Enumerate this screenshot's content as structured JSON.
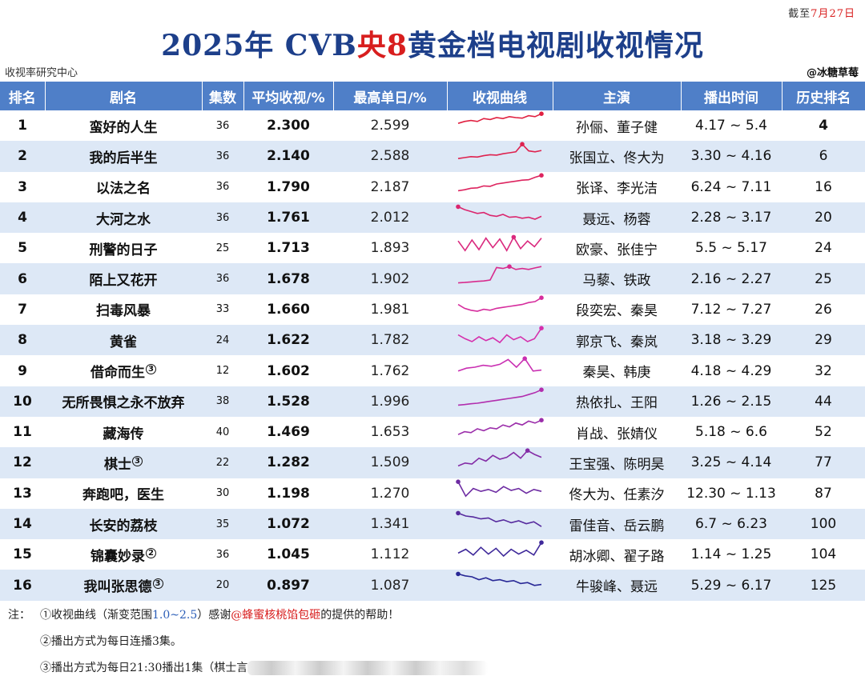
{
  "cutoff": {
    "prefix": "截至",
    "date": "7月27日"
  },
  "title": {
    "part1": "2025年 CVB",
    "part2": "央8",
    "part3": "黄金档电视剧收视情况"
  },
  "source": "收视率研究中心",
  "credit": "@冰糖草莓",
  "headers": [
    "排名",
    "剧名",
    "集数",
    "平均收视/%",
    "最高单日/%",
    "收视曲线",
    "主演",
    "播出时间",
    "历史排名"
  ],
  "rows": [
    {
      "rank": "1",
      "name": "蛮好的人生",
      "note": "",
      "episodes": "36",
      "avg": "2.300",
      "peak": "2.599",
      "cast": "孙俪、董子健",
      "period": "4.17 ~ 5.4",
      "hist": "4"
    },
    {
      "rank": "2",
      "name": "我的后半生",
      "note": "",
      "episodes": "36",
      "avg": "2.140",
      "peak": "2.588",
      "cast": "张国立、佟大为",
      "period": "3.30 ~ 4.16",
      "hist": "6"
    },
    {
      "rank": "3",
      "name": "以法之名",
      "note": "",
      "episodes": "36",
      "avg": "1.790",
      "peak": "2.187",
      "cast": "张译、李光洁",
      "period": "6.24 ~ 7.11",
      "hist": "16"
    },
    {
      "rank": "4",
      "name": "大河之水",
      "note": "",
      "episodes": "36",
      "avg": "1.761",
      "peak": "2.012",
      "cast": "聂远、杨蓉",
      "period": "2.28 ~ 3.17",
      "hist": "20"
    },
    {
      "rank": "5",
      "name": "刑警的日子",
      "note": "",
      "episodes": "25",
      "avg": "1.713",
      "peak": "1.893",
      "cast": "欧豪、张佳宁",
      "period": "5.5 ~ 5.17",
      "hist": "24"
    },
    {
      "rank": "6",
      "name": "陌上又花开",
      "note": "",
      "episodes": "36",
      "avg": "1.678",
      "peak": "1.902",
      "cast": "马藜、铁政",
      "period": "2.16 ~ 2.27",
      "hist": "25"
    },
    {
      "rank": "7",
      "name": "扫毒风暴",
      "note": "",
      "episodes": "33",
      "avg": "1.660",
      "peak": "1.981",
      "cast": "段奕宏、秦昊",
      "period": "7.12 ~ 7.27",
      "hist": "26"
    },
    {
      "rank": "8",
      "name": "黄雀",
      "note": "",
      "episodes": "24",
      "avg": "1.622",
      "peak": "1.782",
      "cast": "郭京飞、秦岚",
      "period": "3.18 ~ 3.29",
      "hist": "29"
    },
    {
      "rank": "9",
      "name": "借命而生",
      "note": "3",
      "episodes": "12",
      "avg": "1.602",
      "peak": "1.762",
      "cast": "秦昊、韩庚",
      "period": "4.18 ~ 4.29",
      "hist": "32"
    },
    {
      "rank": "10",
      "name": "无所畏惧之永不放弃",
      "note": "",
      "episodes": "38",
      "avg": "1.528",
      "peak": "1.996",
      "cast": "热依扎、王阳",
      "period": "1.26 ~ 2.15",
      "hist": "44"
    },
    {
      "rank": "11",
      "name": "藏海传",
      "note": "",
      "episodes": "40",
      "avg": "1.469",
      "peak": "1.653",
      "cast": "肖战、张婧仪",
      "period": "5.18 ~ 6.6",
      "hist": "52"
    },
    {
      "rank": "12",
      "name": "棋士",
      "note": "3",
      "episodes": "22",
      "avg": "1.282",
      "peak": "1.509",
      "cast": "王宝强、陈明昊",
      "period": "3.25 ~ 4.14",
      "hist": "77"
    },
    {
      "rank": "13",
      "name": "奔跑吧，医生",
      "note": "",
      "episodes": "30",
      "avg": "1.198",
      "peak": "1.270",
      "cast": "佟大为、任素汐",
      "period": "12.30 ~ 1.13",
      "hist": "87"
    },
    {
      "rank": "14",
      "name": "长安的荔枝",
      "note": "",
      "episodes": "35",
      "avg": "1.072",
      "peak": "1.341",
      "cast": "雷佳音、岳云鹏",
      "period": "6.7 ~ 6.23",
      "hist": "100"
    },
    {
      "rank": "15",
      "name": "锦囊妙录",
      "note": "2",
      "episodes": "36",
      "avg": "1.045",
      "peak": "1.112",
      "cast": "胡冰卿、翟子路",
      "period": "1.14 ~ 1.25",
      "hist": "104"
    },
    {
      "rank": "16",
      "name": "我叫张思德",
      "note": "3",
      "episodes": "20",
      "avg": "0.897",
      "peak": "1.087",
      "cast": "牛骏峰、聂远",
      "period": "5.29 ~ 6.17",
      "hist": "125"
    }
  ],
  "curves": [
    [
      0.45,
      0.55,
      0.6,
      0.55,
      0.7,
      0.65,
      0.75,
      0.7,
      0.8,
      0.75,
      0.72,
      0.85,
      0.8,
      0.95
    ],
    [
      0.2,
      0.25,
      0.3,
      0.28,
      0.35,
      0.4,
      0.38,
      0.45,
      0.5,
      0.55,
      0.95,
      0.6,
      0.55,
      0.62
    ],
    [
      0.15,
      0.2,
      0.28,
      0.3,
      0.4,
      0.38,
      0.5,
      0.55,
      0.6,
      0.65,
      0.7,
      0.72,
      0.85,
      0.95
    ],
    [
      0.9,
      0.75,
      0.65,
      0.55,
      0.6,
      0.45,
      0.4,
      0.5,
      0.35,
      0.38,
      0.3,
      0.35,
      0.25,
      0.4
    ],
    [
      0.7,
      0.2,
      0.75,
      0.25,
      0.85,
      0.35,
      0.8,
      0.2,
      0.9,
      0.3,
      0.7,
      0.4,
      0.85
    ],
    [
      0.1,
      0.12,
      0.15,
      0.18,
      0.2,
      0.25,
      0.9,
      0.85,
      0.95,
      0.8,
      0.85,
      0.8,
      0.88,
      0.95
    ],
    [
      0.6,
      0.4,
      0.3,
      0.25,
      0.35,
      0.3,
      0.4,
      0.45,
      0.5,
      0.55,
      0.6,
      0.7,
      0.75,
      0.95
    ],
    [
      0.6,
      0.4,
      0.25,
      0.5,
      0.3,
      0.45,
      0.2,
      0.6,
      0.35,
      0.5,
      0.25,
      0.4,
      0.95
    ],
    [
      0.3,
      0.45,
      0.5,
      0.6,
      0.55,
      0.65,
      0.9,
      0.5,
      0.95,
      0.3,
      0.35
    ],
    [
      0.15,
      0.18,
      0.22,
      0.25,
      0.3,
      0.35,
      0.4,
      0.45,
      0.5,
      0.55,
      0.6,
      0.7,
      0.8,
      0.95
    ],
    [
      0.2,
      0.35,
      0.3,
      0.5,
      0.4,
      0.55,
      0.5,
      0.7,
      0.6,
      0.8,
      0.7,
      0.9,
      0.8,
      0.95
    ],
    [
      0.15,
      0.3,
      0.25,
      0.55,
      0.4,
      0.7,
      0.5,
      0.6,
      0.85,
      0.55,
      0.95,
      0.75,
      0.6
    ],
    [
      0.95,
      0.2,
      0.6,
      0.45,
      0.55,
      0.4,
      0.7,
      0.5,
      0.6,
      0.35,
      0.55,
      0.45
    ],
    [
      0.9,
      0.75,
      0.7,
      0.6,
      0.65,
      0.45,
      0.55,
      0.4,
      0.5,
      0.35,
      0.45,
      0.2
    ],
    [
      0.4,
      0.6,
      0.3,
      0.7,
      0.35,
      0.65,
      0.25,
      0.6,
      0.35,
      0.55,
      0.3,
      0.95
    ],
    [
      0.9,
      0.8,
      0.75,
      0.6,
      0.7,
      0.55,
      0.6,
      0.5,
      0.55,
      0.4,
      0.45,
      0.3,
      0.35
    ]
  ],
  "notes": {
    "label": "注：",
    "n1_a": "①收视曲线（渐变范围",
    "n1_range": "1.0~2.5",
    "n1_b": "）感谢",
    "n1_thanks": "@蜂蜜核桃馅包砸",
    "n1_c": "的提供的帮助！",
    "n2": "②播出方式为每日连播3集。",
    "n3": "③播出方式为每日21:30播出1集（棋士言"
  }
}
